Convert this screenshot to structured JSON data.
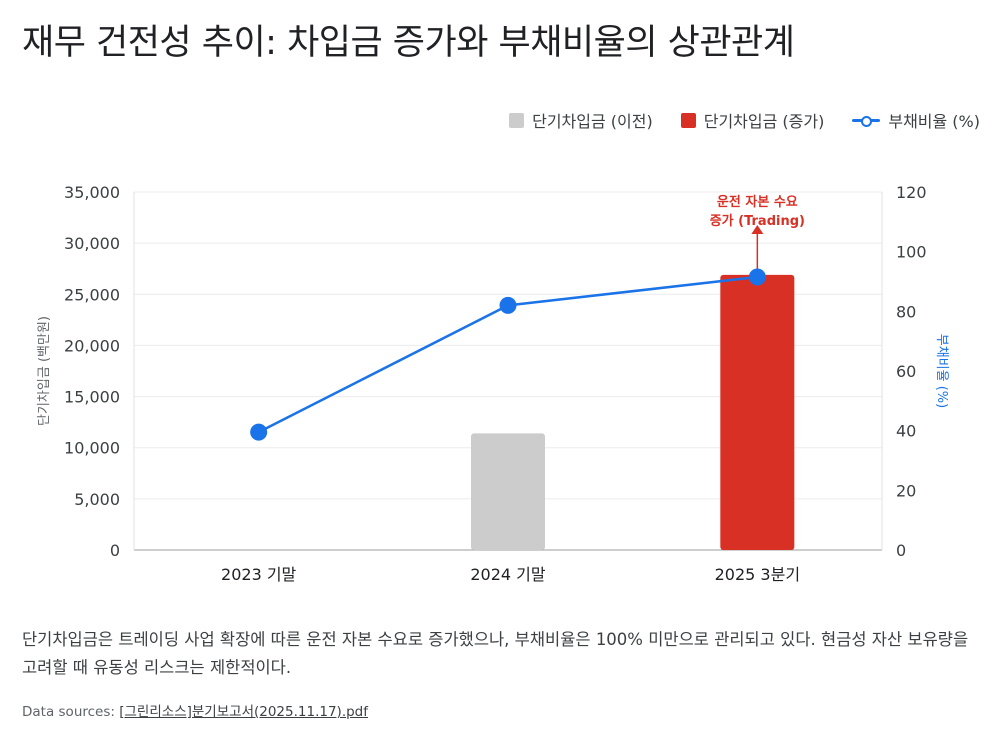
{
  "title": "재무 건전성 추이: 차입금 증가와 부채비율의 상관관계",
  "legend": [
    {
      "label": "단기차입금 (이전)",
      "color": "#cccccc",
      "kind": "bar"
    },
    {
      "label": "단기차입금 (증가)",
      "color": "#d93025",
      "kind": "bar"
    },
    {
      "label": "부채비율 (%)",
      "color": "#1a73e8",
      "kind": "line"
    }
  ],
  "description": "단기차입금은 트레이딩 사업 확장에 따른 운전 자본 수요로 증가했으나, 부채비율은 100% 미만으로 관리되고 있다. 현금성 자산 보유량을 고려할 때 유동성 리스크는 제한적이다.",
  "sources": {
    "label": "Data sources:",
    "file": "[그린리소스]분기보고서(2025.11.17).pdf"
  },
  "chart_data": {
    "type": "bar",
    "categories": [
      "2023 기말",
      "2024 기말",
      "2025 3분기"
    ],
    "series": [
      {
        "name": "단기차입금 (이전)",
        "axis": "left",
        "kind": "bar",
        "color": "#cccccc",
        "values": [
          0,
          11400,
          0
        ]
      },
      {
        "name": "단기차입금 (증가)",
        "axis": "left",
        "kind": "bar",
        "color": "#d93025",
        "values": [
          0,
          0,
          26900
        ]
      },
      {
        "name": "부채비율 (%)",
        "axis": "right",
        "kind": "line",
        "color": "#1a73e8",
        "values": [
          39.5,
          82,
          91.5
        ]
      }
    ],
    "ylabel": "단기차입금 (백만원)",
    "y2label": "부채비율 (%)",
    "ylim": [
      0,
      35000
    ],
    "y2lim": [
      0,
      120
    ],
    "yticks": [
      "0",
      "5,000",
      "10,000",
      "15,000",
      "20,000",
      "25,000",
      "30,000",
      "35,000"
    ],
    "y2ticks": [
      "0",
      "20",
      "40",
      "60",
      "80",
      "100",
      "120"
    ],
    "annotation": {
      "lines": [
        "운전 자본 수요",
        "증가 (Trading)"
      ],
      "category_index": 2,
      "color": "#d93025"
    },
    "grid": true,
    "legend_position": "top-right"
  }
}
